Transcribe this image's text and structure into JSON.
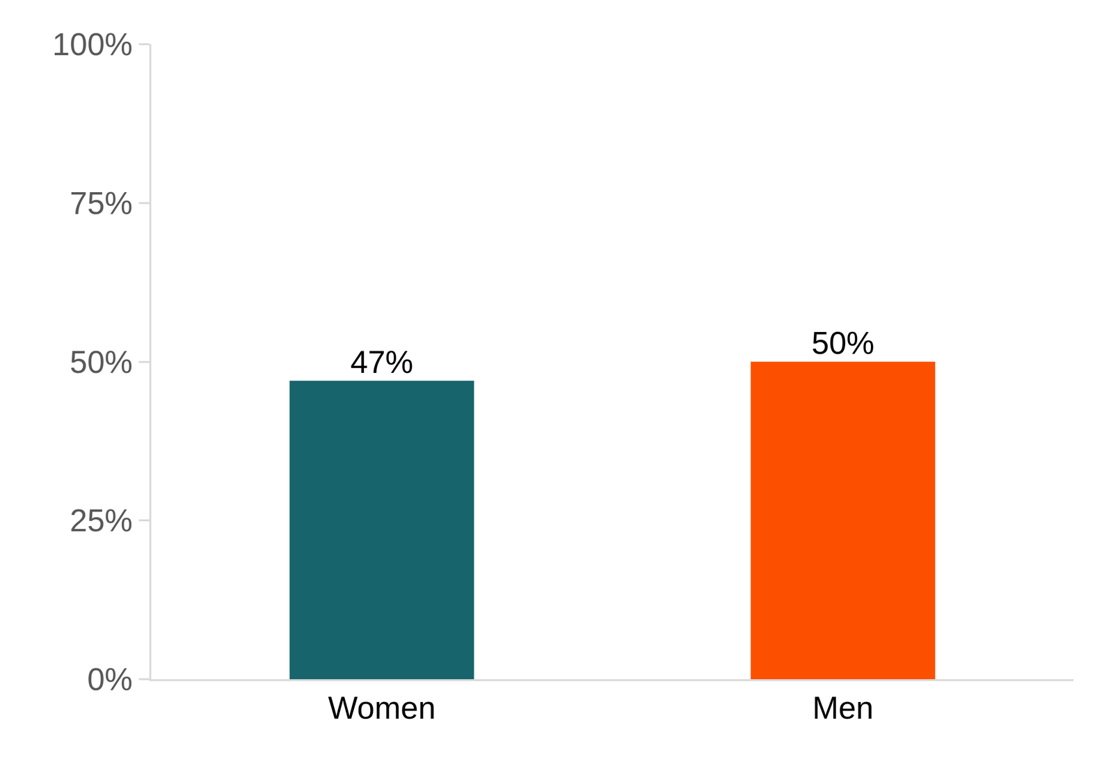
{
  "chart_data": {
    "type": "bar",
    "categories": [
      "Women",
      "Men"
    ],
    "values": [
      47,
      50
    ],
    "value_labels": [
      "47%",
      "50%"
    ],
    "colors": [
      "#17646c",
      "#fc5000"
    ],
    "data_labels": true,
    "grid": false,
    "ylim": [
      0,
      100
    ],
    "yticks": [
      {
        "value": 0,
        "label": "0%"
      },
      {
        "value": 25,
        "label": "25%"
      },
      {
        "value": 50,
        "label": "50%"
      },
      {
        "value": 75,
        "label": "75%"
      },
      {
        "value": 100,
        "label": "100%"
      }
    ]
  }
}
